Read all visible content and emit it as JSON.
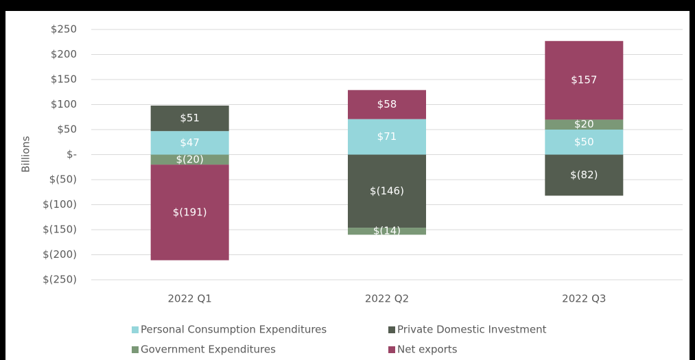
{
  "chart_data": {
    "type": "stacked_bar",
    "y_label": "Billions",
    "categories": [
      "2022 Q1",
      "2022 Q2",
      "2022 Q3"
    ],
    "series": [
      {
        "name": "Personal Consumption Expenditures",
        "color": "#95d6db",
        "values": [
          47,
          71,
          50
        ],
        "value_labels": [
          "$47",
          "$71",
          "$50"
        ]
      },
      {
        "name": "Private Domestic Investment",
        "color": "#545d50",
        "values": [
          51,
          -146,
          -82
        ],
        "value_labels": [
          "$51",
          "$(146)",
          "$(82)"
        ]
      },
      {
        "name": "Government Expenditures",
        "color": "#7b9877",
        "values": [
          -20,
          -14,
          20
        ],
        "value_labels": [
          "$(20)",
          "$(14)",
          "$20"
        ]
      },
      {
        "name": "Net exports",
        "color": "#9a4465",
        "values": [
          -191,
          58,
          157
        ],
        "value_labels": [
          "$(191)",
          "$58",
          "$157"
        ]
      }
    ],
    "ylim": [
      -250,
      250
    ],
    "yticks": [
      {
        "value": 250,
        "label": "$250"
      },
      {
        "value": 200,
        "label": "$200"
      },
      {
        "value": 150,
        "label": "$150"
      },
      {
        "value": 100,
        "label": "$100"
      },
      {
        "value": 50,
        "label": "$50"
      },
      {
        "value": 0,
        "label": "$-"
      },
      {
        "value": -50,
        "label": "$(50)"
      },
      {
        "value": -100,
        "label": "$(100)"
      },
      {
        "value": -150,
        "label": "$(150)"
      },
      {
        "value": -200,
        "label": "$(200)"
      },
      {
        "value": -250,
        "label": "$(250)"
      }
    ],
    "grid": true
  }
}
